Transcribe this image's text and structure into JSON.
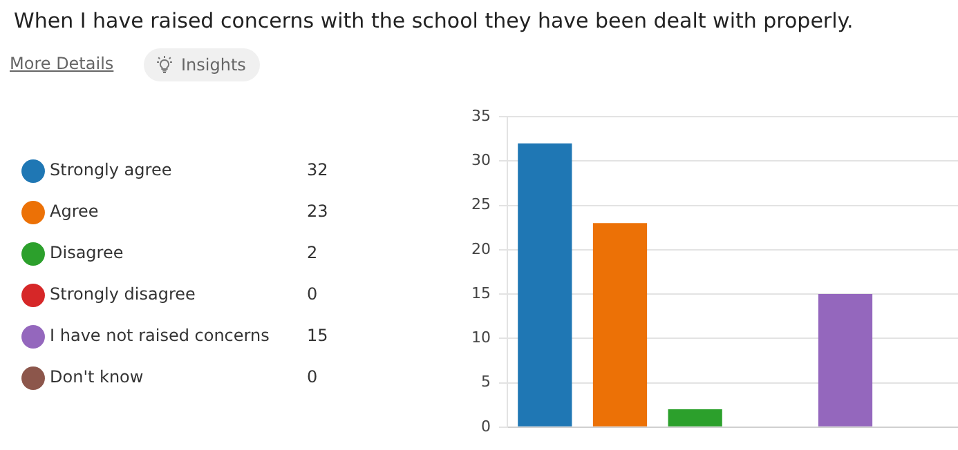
{
  "chart_data": {
    "type": "bar",
    "title": "When I have raised concerns with the school they have been dealt with properly.",
    "annotations": [
      "More Details",
      "Insights",
      "32",
      "23",
      "2",
      "0",
      "15",
      "0"
    ],
    "categories": [
      null,
      null,
      null,
      null,
      null,
      null
    ],
    "series": [
      {
        "name": "Strongly agree",
        "color": "#1f77b4",
        "values": [
          32,
          null,
          null,
          null,
          null,
          null
        ]
      },
      {
        "name": "Agree",
        "color": "#ec7106",
        "values": [
          null,
          23,
          null,
          null,
          null,
          null
        ]
      },
      {
        "name": "Disagree",
        "color": "#2ca02c",
        "values": [
          null,
          null,
          2,
          null,
          null,
          null
        ]
      },
      {
        "name": "Strongly disagree",
        "color": "#d62728",
        "values": [
          null,
          null,
          null,
          0,
          null,
          null
        ]
      },
      {
        "name": "I have not raised concerns",
        "color": "#9467bd",
        "values": [
          null,
          null,
          null,
          null,
          15,
          null
        ]
      },
      {
        "name": "Don't know",
        "color": "#8c564b",
        "values": [
          null,
          null,
          null,
          null,
          null,
          0
        ]
      }
    ],
    "stacked": true,
    "ylim": [
      0,
      35
    ],
    "yticks": [
      0,
      5,
      10,
      15,
      20,
      25,
      30,
      35
    ],
    "grid": "y",
    "legend": "left",
    "tick_labels": "y"
  }
}
